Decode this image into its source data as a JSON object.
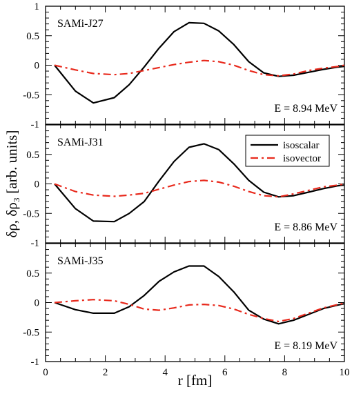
{
  "chart_data": {
    "type": "line",
    "xlabel": "r [fm]",
    "ylabel": "δρ, δρ₃ [arb. units]",
    "xlim": [
      0,
      10
    ],
    "xticks": [
      "0",
      "2",
      "4",
      "6",
      "8",
      "10"
    ],
    "ylim": [
      -1,
      1
    ],
    "yticks": [
      "-1",
      "-0.5",
      "0",
      "0.5",
      "1"
    ],
    "grid": false,
    "legend": {
      "placement": "top-right of middle panel",
      "entries": [
        {
          "name": "isoscalar",
          "color": "#000000",
          "dash": "solid"
        },
        {
          "name": "isovector",
          "color": "#e8291c",
          "dash": "dashdot"
        }
      ]
    },
    "panels": [
      {
        "label": "SAMi-J27",
        "energy": "E = 8.94 MeV",
        "series": [
          {
            "name": "isoscalar",
            "color": "#000000",
            "x": [
              0.3,
              1.0,
              1.6,
              2.3,
              2.8,
              3.3,
              3.8,
              4.3,
              4.8,
              5.3,
              5.8,
              6.3,
              6.8,
              7.3,
              7.8,
              8.3,
              8.8,
              9.3,
              9.8,
              10.0
            ],
            "y": [
              0.0,
              -0.44,
              -0.64,
              -0.55,
              -0.33,
              -0.03,
              0.29,
              0.57,
              0.72,
              0.71,
              0.58,
              0.35,
              0.06,
              -0.13,
              -0.19,
              -0.17,
              -0.12,
              -0.07,
              -0.03,
              -0.02
            ]
          },
          {
            "name": "isovector",
            "color": "#e8291c",
            "x": [
              0.3,
              1.0,
              1.6,
              2.3,
              2.8,
              3.3,
              3.8,
              4.3,
              4.8,
              5.3,
              5.8,
              6.3,
              6.8,
              7.3,
              7.8,
              8.3,
              8.8,
              9.3,
              9.8,
              10.0
            ],
            "y": [
              0.0,
              -0.08,
              -0.14,
              -0.16,
              -0.14,
              -0.09,
              -0.04,
              0.01,
              0.05,
              0.08,
              0.06,
              0.0,
              -0.09,
              -0.16,
              -0.18,
              -0.15,
              -0.09,
              -0.05,
              -0.02,
              0.0
            ]
          }
        ]
      },
      {
        "label": "SAMi-J31",
        "energy": "E = 8.86 MeV",
        "series": [
          {
            "name": "isoscalar",
            "color": "#000000",
            "x": [
              0.3,
              1.0,
              1.6,
              2.3,
              2.8,
              3.3,
              3.8,
              4.3,
              4.8,
              5.3,
              5.8,
              6.3,
              6.8,
              7.3,
              7.8,
              8.3,
              8.8,
              9.3,
              9.8,
              10.0
            ],
            "y": [
              0.0,
              -0.42,
              -0.63,
              -0.64,
              -0.5,
              -0.3,
              0.05,
              0.38,
              0.62,
              0.68,
              0.58,
              0.34,
              0.06,
              -0.14,
              -0.22,
              -0.2,
              -0.14,
              -0.08,
              -0.03,
              -0.02
            ]
          },
          {
            "name": "isovector",
            "color": "#e8291c",
            "x": [
              0.3,
              1.0,
              1.6,
              2.3,
              2.8,
              3.3,
              3.8,
              4.3,
              4.8,
              5.3,
              5.8,
              6.3,
              6.8,
              7.3,
              7.8,
              8.3,
              8.8,
              9.3,
              9.8,
              10.0
            ],
            "y": [
              0.0,
              -0.13,
              -0.19,
              -0.21,
              -0.19,
              -0.16,
              -0.09,
              -0.02,
              0.04,
              0.06,
              0.03,
              -0.04,
              -0.13,
              -0.2,
              -0.22,
              -0.17,
              -0.11,
              -0.05,
              -0.02,
              0.0
            ]
          }
        ]
      },
      {
        "label": "SAMi-J35",
        "energy": "E = 8.19 MeV",
        "series": [
          {
            "name": "isoscalar",
            "color": "#000000",
            "x": [
              0.3,
              1.0,
              1.6,
              2.3,
              2.8,
              3.3,
              3.8,
              4.3,
              4.8,
              5.3,
              5.8,
              6.3,
              6.8,
              7.3,
              7.8,
              8.3,
              8.8,
              9.3,
              9.8,
              10.0
            ],
            "y": [
              0.0,
              -0.12,
              -0.18,
              -0.18,
              -0.07,
              0.12,
              0.36,
              0.52,
              0.62,
              0.62,
              0.44,
              0.18,
              -0.13,
              -0.28,
              -0.36,
              -0.3,
              -0.2,
              -0.1,
              -0.04,
              -0.02
            ]
          },
          {
            "name": "isovector",
            "color": "#e8291c",
            "x": [
              0.3,
              1.0,
              1.6,
              2.3,
              2.8,
              3.3,
              3.8,
              4.3,
              4.8,
              5.3,
              5.8,
              6.3,
              6.8,
              7.3,
              7.8,
              8.3,
              8.8,
              9.3,
              9.8,
              10.0
            ],
            "y": [
              0.0,
              0.03,
              0.05,
              0.03,
              -0.03,
              -0.11,
              -0.13,
              -0.09,
              -0.04,
              -0.03,
              -0.05,
              -0.11,
              -0.2,
              -0.27,
              -0.32,
              -0.27,
              -0.18,
              -0.09,
              -0.03,
              -0.01
            ]
          }
        ]
      }
    ]
  }
}
